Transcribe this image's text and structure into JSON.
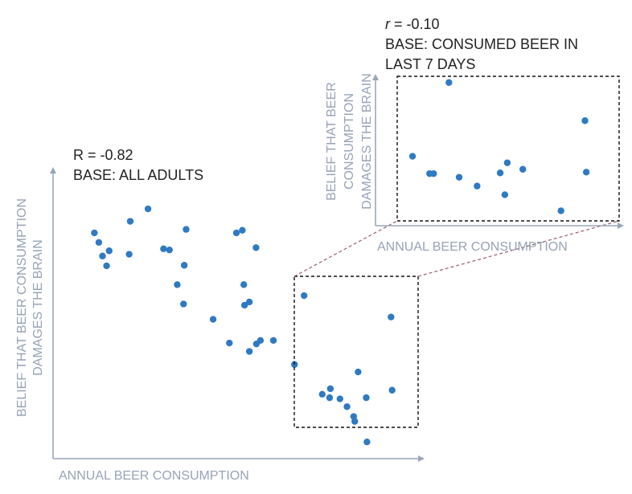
{
  "chart_data": [
    {
      "type": "scatter",
      "title_lines": [
        "R = -0.82",
        "BASE: ALL ADULTS"
      ],
      "xlabel": "ANNUAL BEER CONSUMPTION",
      "ylabel_lines": [
        "BELIEF THAT BEER CONSUMPTION",
        "DAMAGES THE BRAIN"
      ],
      "xlim": [
        0,
        100
      ],
      "ylim": [
        0,
        100
      ],
      "grid": false,
      "points": [
        {
          "x": 10.3,
          "y": 77.8
        },
        {
          "x": 11.5,
          "y": 74.5
        },
        {
          "x": 12.5,
          "y": 69.8
        },
        {
          "x": 13.6,
          "y": 66.4
        },
        {
          "x": 14.3,
          "y": 71.6
        },
        {
          "x": 19.7,
          "y": 70.4
        },
        {
          "x": 20.0,
          "y": 81.8
        },
        {
          "x": 24.8,
          "y": 86.1
        },
        {
          "x": 29.0,
          "y": 72.3
        },
        {
          "x": 30.6,
          "y": 71.9
        },
        {
          "x": 32.7,
          "y": 59.9
        },
        {
          "x": 34.4,
          "y": 53.2
        },
        {
          "x": 34.6,
          "y": 66.6
        },
        {
          "x": 35.1,
          "y": 79.0
        },
        {
          "x": 42.4,
          "y": 47.9
        },
        {
          "x": 46.8,
          "y": 39.7
        },
        {
          "x": 48.7,
          "y": 77.8
        },
        {
          "x": 50.3,
          "y": 78.7
        },
        {
          "x": 50.7,
          "y": 59.9
        },
        {
          "x": 50.9,
          "y": 52.8
        },
        {
          "x": 52.2,
          "y": 53.9
        },
        {
          "x": 52.2,
          "y": 36.8
        },
        {
          "x": 54.0,
          "y": 72.7
        },
        {
          "x": 54.1,
          "y": 39.4
        },
        {
          "x": 55.2,
          "y": 40.6
        },
        {
          "x": 58.7,
          "y": 40.6
        },
        {
          "x": 64.4,
          "y": 32.3
        },
        {
          "x": 67.0,
          "y": 56.1
        },
        {
          "x": 71.9,
          "y": 22.0
        },
        {
          "x": 73.9,
          "y": 20.8
        },
        {
          "x": 74.1,
          "y": 23.9
        },
        {
          "x": 76.7,
          "y": 20.4
        },
        {
          "x": 78.6,
          "y": 17.7
        },
        {
          "x": 80.4,
          "y": 14.3
        },
        {
          "x": 80.7,
          "y": 12.6
        },
        {
          "x": 81.6,
          "y": 29.7
        },
        {
          "x": 83.8,
          "y": 20.8
        },
        {
          "x": 84.0,
          "y": 5.5
        },
        {
          "x": 90.5,
          "y": 48.7
        },
        {
          "x": 90.8,
          "y": 23.4
        }
      ]
    },
    {
      "type": "scatter",
      "title_r": "r",
      "title_r_value": " = -0.10",
      "title_lines": [
        "BASE: CONSUMED BEER IN",
        "LAST 7 DAYS"
      ],
      "xlabel": "ANNUAL BEER CONSUMPTION",
      "ylabel_lines": [
        "BELIEF THAT BEER",
        "CONSUMPTION",
        "DAMAGES THE BRAIN"
      ],
      "xlim": [
        0,
        100
      ],
      "ylim": [
        0,
        100
      ],
      "grid": false,
      "points": [
        {
          "x": 6.9,
          "y": 44.7
        },
        {
          "x": 14.6,
          "y": 32.7
        },
        {
          "x": 16.4,
          "y": 32.7
        },
        {
          "x": 27.9,
          "y": 30.2
        },
        {
          "x": 36.0,
          "y": 24.1
        },
        {
          "x": 23.3,
          "y": 95.7
        },
        {
          "x": 46.4,
          "y": 33.2
        },
        {
          "x": 48.5,
          "y": 18.1
        },
        {
          "x": 49.6,
          "y": 40.2
        },
        {
          "x": 56.6,
          "y": 35.7
        },
        {
          "x": 73.8,
          "y": 7.0
        },
        {
          "x": 84.6,
          "y": 69.3
        },
        {
          "x": 85.2,
          "y": 33.7
        }
      ]
    }
  ],
  "colors": {
    "point": "#2f7ac3",
    "axis": "#9aa6b8",
    "axis_label": "#97a3b6",
    "annotation": "#222222",
    "zoom_box": "#111111",
    "connector": "#9a5c7a"
  }
}
